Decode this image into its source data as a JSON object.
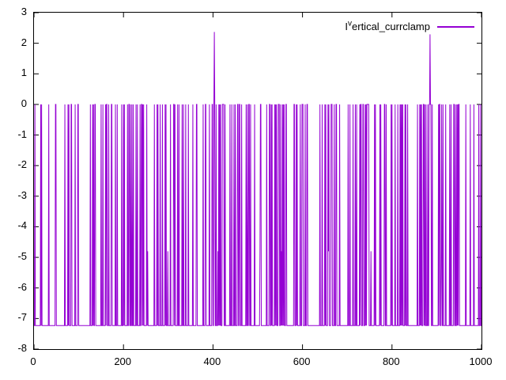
{
  "figure": {
    "background": "#ffffff",
    "border_color": "#000000",
    "text_color": "#000000"
  },
  "legend": {
    "label_prefix": "I",
    "label_superscript": "v",
    "label_rest": "ertical_currclamp",
    "line_color": "#9400d3",
    "position": "top-right-inside"
  },
  "chart_data": {
    "type": "line",
    "title": "",
    "xlabel": "",
    "ylabel": "",
    "xlim": [
      0,
      1000
    ],
    "ylim": [
      -8,
      3
    ],
    "x_ticks": [
      0,
      200,
      400,
      600,
      800,
      1000
    ],
    "y_ticks": [
      -8,
      -7,
      -6,
      -5,
      -4,
      -3,
      -2,
      -1,
      0,
      1,
      2,
      3
    ],
    "grid": false,
    "tick_style": "inward-mirrored-all-borders",
    "legend_position": "top-right",
    "series": [
      {
        "name": "I^vertical_currclamp",
        "color": "#9400d3",
        "style": "lines",
        "pattern": {
          "description": "Dense pulse train over x in [0,1000]: signal toggles pseudo-randomly between 0 and -7.23 at nearly every sample, producing a near-solid band with thin white gaps; occasional partial dips to about -4.8; two isolated positive spikes.",
          "generator": "seeded-random",
          "seed": 1337,
          "n_samples": 1000,
          "high_level": 0,
          "low_level": -7.23,
          "low_probability": 0.78,
          "mid_level": -4.8,
          "mid_probability": 0.008
        },
        "spikes": [
          {
            "x": 403,
            "y": 2.37
          },
          {
            "x": 885,
            "y": 2.29
          }
        ]
      }
    ]
  }
}
